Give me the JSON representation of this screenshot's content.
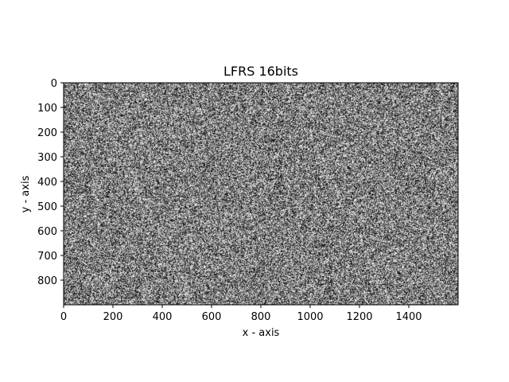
{
  "chart_data": {
    "type": "heatmap",
    "title": "LFRS 16bits",
    "xlabel": "x - axis",
    "ylabel": "y - axis",
    "colormap": "gray",
    "xlim": [
      0,
      1600
    ],
    "ylim": [
      900,
      0
    ],
    "x_ticks": [
      0,
      200,
      400,
      600,
      800,
      1000,
      1200,
      1400
    ],
    "y_ticks": [
      0,
      100,
      200,
      300,
      400,
      500,
      600,
      700,
      800
    ],
    "grid": false,
    "legend": "none",
    "colors": {
      "background": "#ffffff",
      "axes": "#000000",
      "pixel_dark": "#000000",
      "pixel_light": "#ffffff"
    }
  }
}
